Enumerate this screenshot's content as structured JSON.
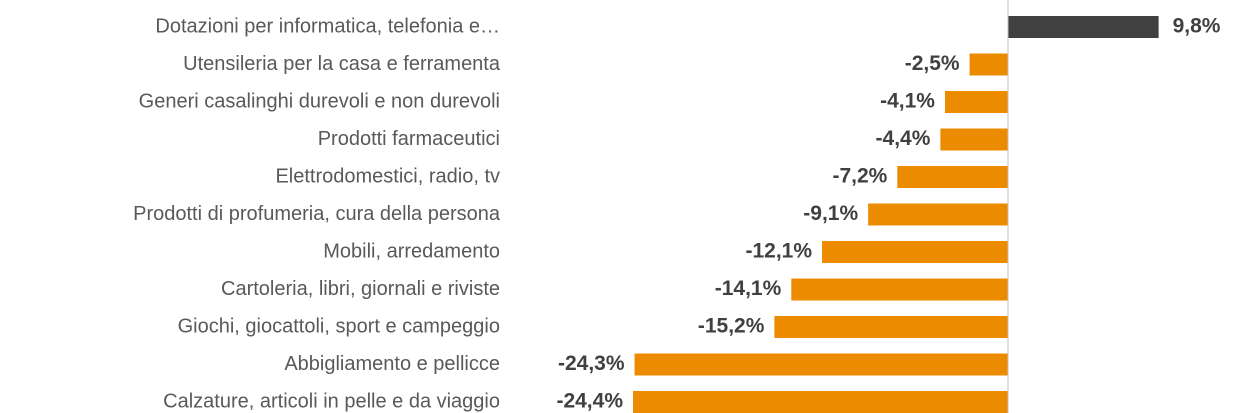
{
  "chart_data": {
    "type": "bar",
    "orientation": "horizontal",
    "categories": [
      "Dotazioni per informatica, telefonia e…",
      "Utensileria per la casa e ferramenta",
      "Generi casalinghi durevoli e non durevoli",
      "Prodotti farmaceutici",
      "Elettrodomestici, radio, tv",
      "Prodotti di profumeria, cura della persona",
      "Mobili, arredamento",
      "Cartoleria, libri, giornali e riviste",
      "Giochi, giocattoli, sport e campeggio",
      "Abbigliamento e pellicce",
      "Calzature, articoli in pelle e da viaggio"
    ],
    "values": [
      9.8,
      -2.5,
      -4.1,
      -4.4,
      -7.2,
      -9.1,
      -12.1,
      -14.1,
      -15.2,
      -24.3,
      -24.4
    ],
    "value_labels": [
      "9,8%",
      "-2,5%",
      "-4,1%",
      "-4,4%",
      "-7,2%",
      "-9,1%",
      "-12,1%",
      "-14,1%",
      "-15,2%",
      "-24,3%",
      "-24,4%"
    ],
    "colors": [
      "#404040",
      "#ed8b00",
      "#ed8b00",
      "#ed8b00",
      "#ed8b00",
      "#ed8b00",
      "#ed8b00",
      "#ed8b00",
      "#ed8b00",
      "#ed8b00",
      "#ed8b00"
    ]
  }
}
